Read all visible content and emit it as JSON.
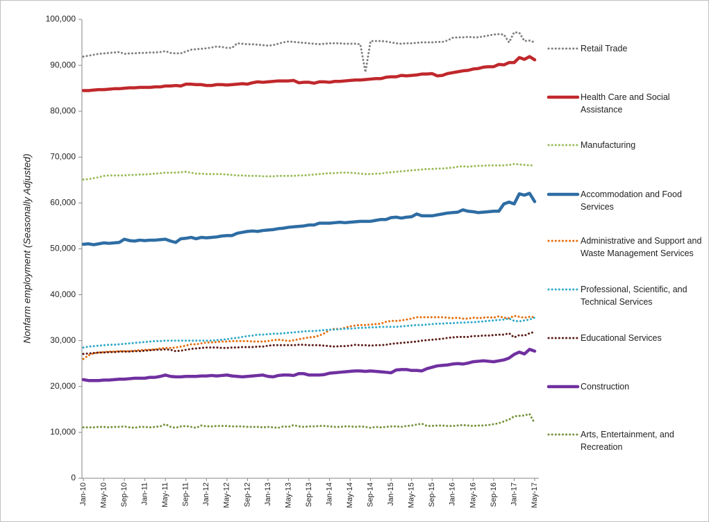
{
  "chart_data": {
    "type": "line",
    "y_label": "Nonfarm employment (Seasonally Adjusted)",
    "categories": [
      "Jan-10",
      null,
      null,
      null,
      "May-10",
      null,
      null,
      null,
      "Sep-10",
      null,
      null,
      null,
      "Jan-11",
      null,
      null,
      null,
      "May-11",
      null,
      null,
      null,
      "Sep-11",
      null,
      null,
      null,
      "Jan-12",
      null,
      null,
      null,
      "May-12",
      null,
      null,
      null,
      "Sep-12",
      null,
      null,
      null,
      "Jan-13",
      null,
      null,
      null,
      "May-13",
      null,
      null,
      null,
      "Sep-13",
      null,
      null,
      null,
      "Jan-14",
      null,
      null,
      null,
      "May-14",
      null,
      null,
      null,
      "Sep-14",
      null,
      null,
      null,
      "Jan-15",
      null,
      null,
      null,
      "May-15",
      null,
      null,
      null,
      "Sep-15",
      null,
      null,
      null,
      "Jan-16",
      null,
      null,
      null,
      "May-16",
      null,
      null,
      null,
      "Sep-16",
      null,
      null,
      null,
      "Jan-17",
      null,
      null,
      null,
      "May-17"
    ],
    "ylim": [
      0,
      100000
    ],
    "yticks": [
      0,
      {
        "value": 10000,
        "label": "10,000"
      },
      {
        "value": 20000,
        "label": "20,000"
      },
      {
        "value": 30000,
        "label": "30,000"
      },
      {
        "value": 40000,
        "label": "40,000"
      },
      {
        "value": 50000,
        "label": "50,000"
      },
      {
        "value": 60000,
        "label": "60,000"
      },
      {
        "value": 70000,
        "label": "70,000"
      },
      {
        "value": 80000,
        "label": "80,000"
      },
      {
        "value": 90000,
        "label": "90,000"
      },
      {
        "value": 100000,
        "label": "100,000"
      }
    ],
    "grid": false,
    "legend": "right",
    "series": [
      {
        "name": "Retail Trade",
        "color": "#7f7f7f",
        "style": "dotted",
        "values": [
          91900,
          92100,
          92300,
          92500,
          92600,
          92700,
          92800,
          92900,
          92500,
          92600,
          92600,
          92700,
          92700,
          92800,
          92800,
          92900,
          93100,
          92700,
          92600,
          92600,
          93000,
          93400,
          93500,
          93600,
          93700,
          93900,
          94100,
          94000,
          93800,
          93800,
          94800,
          94700,
          94600,
          94600,
          94500,
          94400,
          94300,
          94400,
          94700,
          95000,
          95200,
          95100,
          95000,
          94900,
          94800,
          94700,
          94600,
          94700,
          94800,
          94800,
          94800,
          94700,
          94700,
          94700,
          94600,
          88500,
          95300,
          95300,
          95300,
          95200,
          95000,
          94800,
          94700,
          94800,
          94800,
          94900,
          95000,
          95000,
          95000,
          95100,
          95100,
          95400,
          96000,
          96100,
          96100,
          96200,
          96100,
          96100,
          96300,
          96500,
          96700,
          96800,
          96700,
          95000,
          97200,
          97100,
          95300,
          95400,
          95000
        ]
      },
      {
        "name": "Health Care and Social Assistance",
        "color": "#c0282c",
        "style": "solid",
        "values": [
          84500,
          84500,
          84600,
          84700,
          84700,
          84800,
          84900,
          84900,
          85000,
          85100,
          85100,
          85200,
          85200,
          85200,
          85300,
          85300,
          85500,
          85500,
          85600,
          85500,
          85900,
          85900,
          85800,
          85800,
          85600,
          85600,
          85800,
          85800,
          85700,
          85800,
          85900,
          86000,
          85900,
          86200,
          86400,
          86300,
          86400,
          86500,
          86600,
          86600,
          86600,
          86700,
          86200,
          86300,
          86300,
          86100,
          86400,
          86400,
          86300,
          86500,
          86500,
          86600,
          86700,
          86800,
          86800,
          86900,
          87000,
          87100,
          87100,
          87400,
          87500,
          87500,
          87800,
          87700,
          87800,
          87900,
          88100,
          88100,
          88200,
          87700,
          87800,
          88200,
          88400,
          88600,
          88800,
          88900,
          89200,
          89300,
          89600,
          89700,
          89700,
          90200,
          90100,
          90600,
          90600,
          91700,
          91300,
          91900,
          91200
        ]
      },
      {
        "name": "Manufacturing",
        "color": "#9bbb59",
        "style": "dotted",
        "values": [
          65100,
          65200,
          65400,
          65600,
          65900,
          66000,
          66000,
          66000,
          66000,
          66100,
          66100,
          66200,
          66200,
          66300,
          66400,
          66500,
          66600,
          66600,
          66600,
          66700,
          66800,
          66600,
          66400,
          66400,
          66300,
          66300,
          66300,
          66300,
          66200,
          66100,
          66000,
          66000,
          65900,
          65900,
          65900,
          65800,
          65800,
          65800,
          65900,
          65900,
          65900,
          65900,
          66000,
          66000,
          66100,
          66200,
          66300,
          66400,
          66500,
          66500,
          66600,
          66600,
          66600,
          66500,
          66400,
          66300,
          66300,
          66400,
          66400,
          66600,
          66700,
          66800,
          66900,
          67000,
          67100,
          67200,
          67300,
          67400,
          67400,
          67500,
          67500,
          67600,
          67700,
          67900,
          68000,
          67900,
          68000,
          68100,
          68100,
          68200,
          68200,
          68200,
          68200,
          68300,
          68500,
          68400,
          68300,
          68200,
          68200
        ]
      },
      {
        "name": "Accommodation and Food Services",
        "color": "#2e6da4",
        "style": "solid",
        "values": [
          51000,
          51100,
          50900,
          51100,
          51300,
          51200,
          51300,
          51400,
          52100,
          51800,
          51700,
          51900,
          51800,
          51900,
          51900,
          52000,
          52100,
          51700,
          51400,
          52200,
          52300,
          52500,
          52200,
          52500,
          52400,
          52500,
          52600,
          52800,
          52900,
          52900,
          53400,
          53600,
          53800,
          53900,
          53800,
          54000,
          54100,
          54200,
          54400,
          54500,
          54700,
          54800,
          54900,
          55000,
          55200,
          55200,
          55600,
          55600,
          55600,
          55700,
          55800,
          55700,
          55800,
          55900,
          56000,
          56000,
          56000,
          56200,
          56400,
          56400,
          56800,
          56900,
          56700,
          56900,
          57000,
          57600,
          57200,
          57200,
          57200,
          57400,
          57600,
          57800,
          57900,
          58000,
          58500,
          58200,
          58100,
          57900,
          58000,
          58100,
          58200,
          58200,
          59800,
          60200,
          59800,
          62000,
          61700,
          62100,
          60300
        ]
      },
      {
        "name": "Administrative and Support and Waste Management Services",
        "color": "#e46c0a",
        "style": "dotted",
        "values": [
          26000,
          26800,
          27200,
          27400,
          27500,
          27600,
          27600,
          27700,
          27700,
          27700,
          27800,
          27900,
          28000,
          28000,
          28100,
          28300,
          28400,
          28400,
          28500,
          28700,
          28900,
          29200,
          29200,
          29400,
          29600,
          29600,
          29700,
          29800,
          29800,
          29900,
          29900,
          29900,
          29900,
          29800,
          29800,
          29800,
          29900,
          30100,
          30200,
          30100,
          29900,
          30100,
          30300,
          30500,
          30700,
          30800,
          31100,
          31600,
          32300,
          32600,
          32500,
          32800,
          33100,
          33300,
          33400,
          33400,
          33500,
          33600,
          33700,
          34100,
          34300,
          34300,
          34400,
          34600,
          34800,
          35100,
          35100,
          35100,
          35100,
          35100,
          35100,
          35000,
          34900,
          35000,
          34800,
          34800,
          35000,
          34900,
          35000,
          35100,
          35000,
          35300,
          35000,
          34900,
          35400,
          35200,
          35000,
          35200,
          35100
        ]
      },
      {
        "name": "Professional, Scientific, and Technical Services",
        "color": "#31a9c8",
        "style": "dotted",
        "values": [
          28500,
          28700,
          28800,
          28900,
          29000,
          29100,
          29100,
          29200,
          29300,
          29400,
          29500,
          29600,
          29700,
          29800,
          29900,
          29900,
          30000,
          30000,
          30000,
          30000,
          30000,
          30000,
          30000,
          30000,
          30000,
          30000,
          30100,
          30200,
          30300,
          30500,
          30600,
          30800,
          31000,
          31100,
          31300,
          31300,
          31400,
          31500,
          31500,
          31600,
          31700,
          31800,
          31900,
          32000,
          32100,
          32100,
          32200,
          32300,
          32400,
          32400,
          32500,
          32600,
          32600,
          32700,
          32800,
          32800,
          32900,
          32900,
          33000,
          33000,
          33000,
          33000,
          33100,
          33200,
          33300,
          33400,
          33400,
          33500,
          33600,
          33700,
          33700,
          33800,
          33800,
          33900,
          33900,
          34000,
          34000,
          34100,
          34200,
          34300,
          34400,
          34500,
          34600,
          34800,
          34300,
          34200,
          34400,
          34600,
          35000
        ]
      },
      {
        "name": "Educational Services",
        "color": "#5c1b16",
        "style": "dotted",
        "values": [
          27100,
          27200,
          27300,
          27400,
          27400,
          27500,
          27500,
          27600,
          27600,
          27600,
          27700,
          27700,
          27800,
          27900,
          28000,
          28000,
          28100,
          28000,
          27700,
          27800,
          28000,
          28200,
          28300,
          28400,
          28500,
          28500,
          28500,
          28400,
          28400,
          28500,
          28500,
          28600,
          28600,
          28600,
          28700,
          28700,
          28900,
          29000,
          29000,
          29000,
          29000,
          29000,
          29100,
          29100,
          29000,
          29000,
          29000,
          28900,
          28800,
          28700,
          28800,
          28800,
          28900,
          29100,
          29000,
          29000,
          28900,
          29000,
          29000,
          29100,
          29300,
          29400,
          29500,
          29600,
          29700,
          29800,
          30000,
          30100,
          30200,
          30300,
          30400,
          30600,
          30700,
          30800,
          30800,
          30800,
          31000,
          31000,
          31100,
          31100,
          31200,
          31300,
          31300,
          31600,
          30700,
          31200,
          31100,
          31600,
          31900
        ]
      },
      {
        "name": "Construction",
        "color": "#7030a0",
        "style": "solid",
        "values": [
          21500,
          21300,
          21300,
          21300,
          21400,
          21400,
          21500,
          21600,
          21600,
          21700,
          21800,
          21800,
          21800,
          22000,
          22000,
          22200,
          22500,
          22200,
          22100,
          22100,
          22200,
          22200,
          22200,
          22300,
          22300,
          22400,
          22300,
          22400,
          22500,
          22300,
          22200,
          22100,
          22200,
          22300,
          22400,
          22500,
          22200,
          22100,
          22400,
          22500,
          22500,
          22400,
          22800,
          22800,
          22500,
          22500,
          22500,
          22600,
          22900,
          23000,
          23100,
          23200,
          23300,
          23400,
          23400,
          23300,
          23400,
          23300,
          23200,
          23100,
          23000,
          23600,
          23700,
          23700,
          23500,
          23500,
          23400,
          23900,
          24200,
          24500,
          24600,
          24700,
          24900,
          25000,
          24900,
          25100,
          25400,
          25500,
          25600,
          25500,
          25400,
          25600,
          25800,
          26200,
          27000,
          27500,
          27100,
          28100,
          27700
        ]
      },
      {
        "name": "Arts, Entertainment, and Recreation",
        "color": "#77933c",
        "style": "dotted",
        "values": [
          11100,
          11100,
          11100,
          11200,
          11200,
          11100,
          11200,
          11200,
          11300,
          11100,
          11000,
          11200,
          11200,
          11100,
          11200,
          11300,
          11800,
          11200,
          11000,
          11300,
          11400,
          11200,
          11000,
          11500,
          11300,
          11300,
          11400,
          11400,
          11400,
          11300,
          11300,
          11300,
          11200,
          11200,
          11200,
          11100,
          11200,
          11100,
          11000,
          11300,
          11200,
          11600,
          11300,
          11200,
          11300,
          11300,
          11400,
          11400,
          11300,
          11200,
          11200,
          11300,
          11300,
          11200,
          11300,
          11200,
          11000,
          11200,
          11100,
          11200,
          11300,
          11300,
          11200,
          11400,
          11500,
          11700,
          11900,
          11400,
          11400,
          11500,
          11500,
          11400,
          11400,
          11500,
          11600,
          11500,
          11400,
          11500,
          11500,
          11600,
          11800,
          12000,
          12400,
          12800,
          13500,
          13600,
          13700,
          14000,
          12000
        ]
      }
    ]
  }
}
